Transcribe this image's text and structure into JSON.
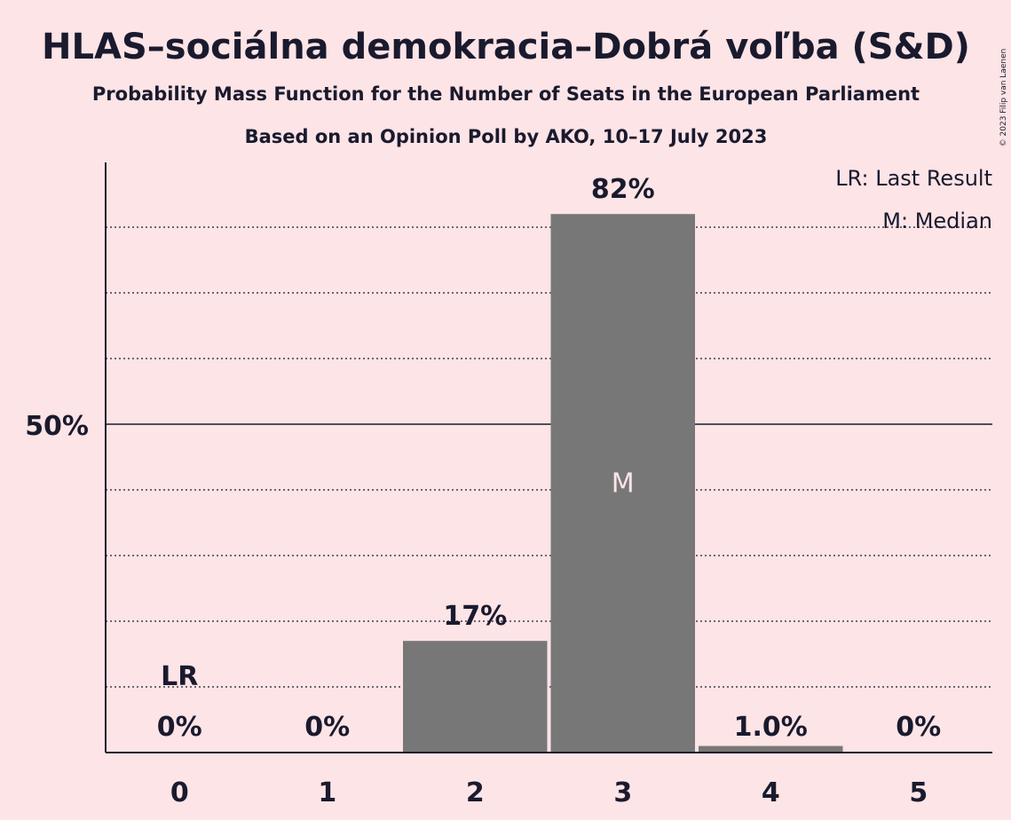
{
  "chart_data": {
    "type": "bar",
    "title": "HLAS–sociálna demokracia–Dobrá voľba (S&D)",
    "subtitle": "Probability Mass Function for the Number of Seats in the European Parliament",
    "subtitle2": "Based on an Opinion Poll by AKO, 10–17 July 2023",
    "categories": [
      "0",
      "1",
      "2",
      "3",
      "4",
      "5"
    ],
    "values": [
      0,
      0,
      17,
      82,
      1.0,
      0
    ],
    "value_labels": [
      "0%",
      "0%",
      "17%",
      "82%",
      "1.0%",
      "0%"
    ],
    "ylim": [
      0,
      90
    ],
    "y_ticks": [
      {
        "value": 50,
        "label": "50%"
      }
    ],
    "gridlines": [
      10,
      20,
      30,
      40,
      60,
      70,
      80
    ],
    "last_result_index": 0,
    "last_result_label": "LR",
    "median_index": 3,
    "median_label": "M",
    "legend": [
      "LR: Last Result",
      "M: Median"
    ],
    "legend_position": "top-right",
    "copyright": "© 2023 Filip van Laenen",
    "colors": {
      "bar": "#777777",
      "background": "#fde4e6",
      "text": "#1a1a2e"
    }
  }
}
